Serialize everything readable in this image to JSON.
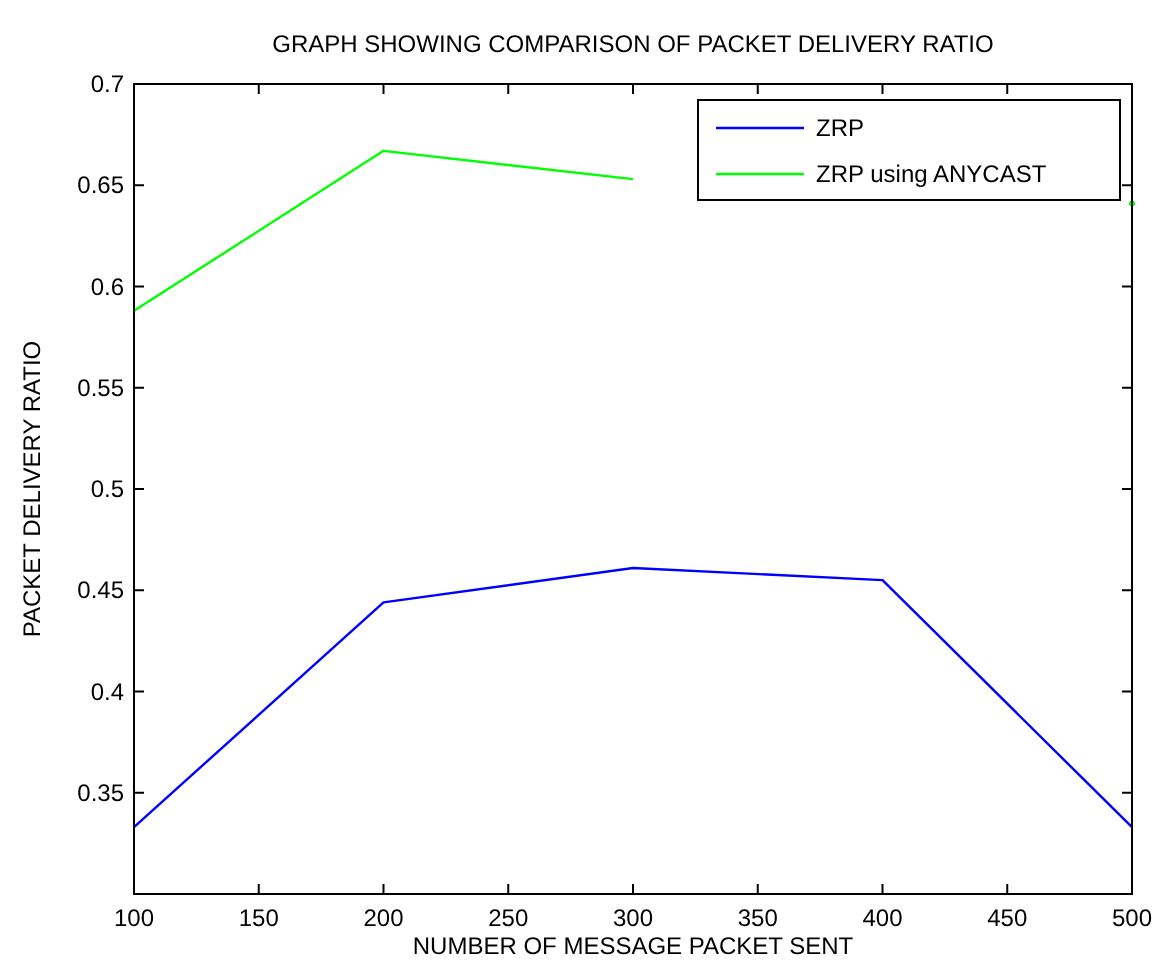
{
  "chart_data": {
    "type": "line",
    "title": "GRAPH SHOWING COMPARISON OF PACKET DELIVERY RATIO",
    "xlabel": "NUMBER OF MESSAGE PACKET SENT",
    "ylabel": "PACKET DELIVERY RATIO",
    "x": [
      100,
      200,
      300,
      400,
      500
    ],
    "series": [
      {
        "name": "ZRP",
        "color": "#0000ff",
        "values": [
          0.333,
          0.444,
          0.461,
          0.455,
          0.333
        ]
      },
      {
        "name": "ZRP using ANYCAST",
        "color": "#00ff00",
        "values": [
          0.588,
          0.667,
          0.653,
          null,
          0.641
        ]
      }
    ],
    "xlim": [
      100,
      500
    ],
    "xticks": [
      100,
      150,
      200,
      250,
      300,
      350,
      400,
      450,
      500
    ],
    "ylim": [
      0.3,
      0.7
    ],
    "yticks": [
      {
        "value": 0.3,
        "label": null
      },
      0.35,
      0.4,
      0.45,
      0.5,
      0.55,
      0.6,
      0.65,
      0.7
    ],
    "grid": false,
    "legend": "top right",
    "marker": "none",
    "line_style": "solid"
  }
}
